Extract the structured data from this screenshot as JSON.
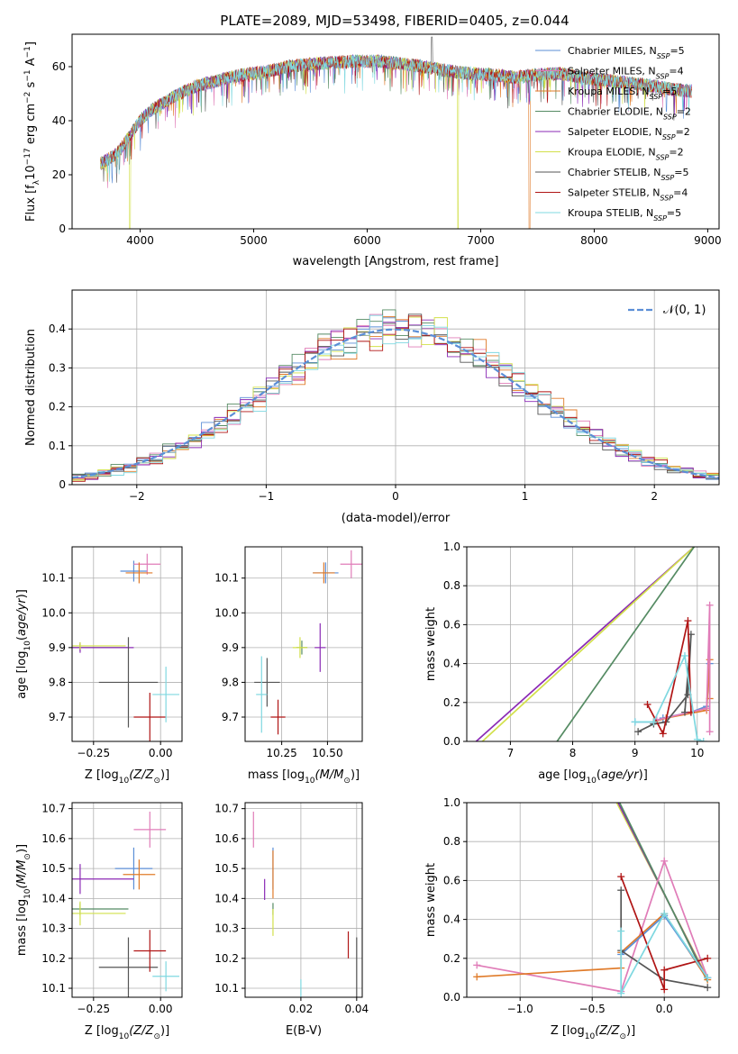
{
  "figure": {
    "title": "PLATE=2089, MJD=53498, FIBERID=0405, z=0.044"
  },
  "models": [
    {
      "name": "Chabrier MILES, N",
      "sub": "SSP",
      "n": "=5",
      "color": "#5b8ed6"
    },
    {
      "name": "Salpeter MILES, N",
      "sub": "SSP",
      "n": "=4",
      "color": "#e07cb8"
    },
    {
      "name": "Kroupa MILES, N",
      "sub": "SSP",
      "n": "=5",
      "color": "#e07b2a"
    },
    {
      "name": "Chabrier ELODIE, N",
      "sub": "SSP",
      "n": "=2",
      "color": "#558b63"
    },
    {
      "name": "Salpeter ELODIE, N",
      "sub": "SSP",
      "n": "=2",
      "color": "#8b2ab5"
    },
    {
      "name": "Kroupa ELODIE, N",
      "sub": "SSP",
      "n": "=2",
      "color": "#d2e04a"
    },
    {
      "name": "Chabrier STELIB, N",
      "sub": "SSP",
      "n": "=5",
      "color": "#555555"
    },
    {
      "name": "Salpeter STELIB, N",
      "sub": "SSP",
      "n": "=4",
      "color": "#b01515"
    },
    {
      "name": "Kroupa STELIB, N",
      "sub": "SSP",
      "n": "=5",
      "color": "#7fd8e0"
    }
  ],
  "chart_data": [
    {
      "id": "spectrum",
      "type": "line",
      "xlabel": "wavelength [Angstrom, rest frame]",
      "ylabel_parts": [
        "Flux [f",
        "λ",
        "10",
        "−17",
        " erg cm",
        "−2",
        " s",
        "−1",
        " A",
        "−1",
        "]"
      ],
      "xlim": [
        3400,
        9100
      ],
      "ylim": [
        0,
        72
      ],
      "xticks": [
        4000,
        5000,
        6000,
        7000,
        8000,
        9000
      ],
      "yticks": [
        0,
        20,
        40,
        60
      ],
      "continuum": [
        [
          3650,
          24
        ],
        [
          3800,
          28
        ],
        [
          3900,
          34
        ],
        [
          4000,
          40
        ],
        [
          4100,
          44
        ],
        [
          4300,
          49
        ],
        [
          4500,
          53
        ],
        [
          4700,
          55
        ],
        [
          4900,
          57
        ],
        [
          5100,
          58
        ],
        [
          5300,
          60
        ],
        [
          5500,
          61
        ],
        [
          5700,
          61.5
        ],
        [
          5900,
          62
        ],
        [
          6100,
          62
        ],
        [
          6300,
          61
        ],
        [
          6500,
          60
        ],
        [
          6700,
          58.5
        ],
        [
          6900,
          57.5
        ],
        [
          7100,
          57
        ],
        [
          7300,
          56
        ],
        [
          7500,
          57
        ],
        [
          7700,
          57.5
        ],
        [
          7900,
          56
        ],
        [
          8100,
          55
        ],
        [
          8300,
          54
        ],
        [
          8500,
          53
        ],
        [
          8700,
          51.5
        ],
        [
          8850,
          51
        ]
      ],
      "dropouts": [
        {
          "model": 5,
          "x": 3910
        },
        {
          "model": 5,
          "x": 6800
        },
        {
          "model": 2,
          "x": 7430
        }
      ],
      "spike": {
        "x": 6570,
        "y": 71
      }
    },
    {
      "id": "residuals",
      "type": "histogram",
      "xlabel": "(data-model)/error",
      "ylabel": "Normed distribution",
      "xlim": [
        -2.5,
        2.5
      ],
      "ylim": [
        0,
        0.5
      ],
      "xticks": [
        -2,
        -1,
        0,
        1,
        2
      ],
      "yticks": [
        0,
        0.1,
        0.2,
        0.3,
        0.4
      ],
      "bin_width": 0.1,
      "gaussian_label": "𝒩(0, 1)",
      "gaussian_color": "#5b8ed6"
    },
    {
      "id": "age-Z",
      "type": "errorbar",
      "xlabel_parts": [
        "Z [log",
        "10",
        "(Z/Z",
        "⊙",
        ")]"
      ],
      "ylabel_parts": [
        "age  [log",
        "10",
        "(",
        "age/yr",
        ")]"
      ],
      "xlim": [
        -0.33,
        0.08
      ],
      "ylim": [
        9.63,
        10.19
      ],
      "xticks": [
        -0.25,
        0.0
      ],
      "xtick_labels": [
        "−0.25",
        "0.00"
      ],
      "yticks": [
        9.7,
        9.8,
        9.9,
        10.0,
        10.1
      ],
      "ytick_labels": [
        "9.7",
        "9.8",
        "9.9",
        "10.0",
        "10.1"
      ],
      "points": [
        {
          "m": 0,
          "x": -0.1,
          "y": 10.12,
          "ex": 0.05,
          "ey": 0.03
        },
        {
          "m": 1,
          "x": -0.05,
          "y": 10.14,
          "ex": 0.05,
          "ey": 0.03
        },
        {
          "m": 2,
          "x": -0.08,
          "y": 10.115,
          "ex": 0.05,
          "ey": 0.03
        },
        {
          "m": 3,
          "x": -0.3,
          "y": 9.9,
          "ex": 0.18,
          "ey": 0.01
        },
        {
          "m": 4,
          "x": -0.3,
          "y": 9.9,
          "ex": 0.2,
          "ey": 0.015
        },
        {
          "m": 5,
          "x": -0.3,
          "y": 9.905,
          "ex": 0.17,
          "ey": 0.01
        },
        {
          "m": 6,
          "x": -0.12,
          "y": 9.8,
          "ex": 0.11,
          "ey": 0.13
        },
        {
          "m": 7,
          "x": -0.04,
          "y": 9.7,
          "ex": 0.06,
          "ey": 0.07
        },
        {
          "m": 8,
          "x": 0.02,
          "y": 9.765,
          "ex": 0.05,
          "ey": 0.08
        }
      ]
    },
    {
      "id": "age-mass",
      "type": "errorbar",
      "xlabel_parts": [
        "mass [log",
        "10",
        "(M/M",
        "⊙",
        ")]"
      ],
      "ylabel_parts": [],
      "xlim": [
        10.05,
        10.69
      ],
      "ylim": [
        9.63,
        10.19
      ],
      "xticks": [
        10.25,
        10.5
      ],
      "xtick_labels": [
        "10.25",
        "10.50"
      ],
      "yticks": [
        9.7,
        9.8,
        9.9,
        10.0,
        10.1
      ],
      "ytick_labels": [
        "9.7",
        "9.8",
        "9.9",
        "10.0",
        "10.1"
      ],
      "points": [
        {
          "m": 0,
          "x": 10.49,
          "y": 10.115,
          "ex": 0.07,
          "ey": 0.03
        },
        {
          "m": 1,
          "x": 10.63,
          "y": 10.14,
          "ex": 0.06,
          "ey": 0.04
        },
        {
          "m": 2,
          "x": 10.48,
          "y": 10.115,
          "ex": 0.06,
          "ey": 0.03
        },
        {
          "m": 3,
          "x": 10.36,
          "y": 9.9,
          "ex": 0.03,
          "ey": 0.02
        },
        {
          "m": 4,
          "x": 10.46,
          "y": 9.9,
          "ex": 0.03,
          "ey": 0.07
        },
        {
          "m": 5,
          "x": 10.35,
          "y": 9.9,
          "ex": 0.04,
          "ey": 0.03
        },
        {
          "m": 6,
          "x": 10.17,
          "y": 9.8,
          "ex": 0.07,
          "ey": 0.07
        },
        {
          "m": 7,
          "x": 10.23,
          "y": 9.7,
          "ex": 0.04,
          "ey": 0.05
        },
        {
          "m": 8,
          "x": 10.14,
          "y": 9.765,
          "ex": 0.03,
          "ey": 0.11
        }
      ]
    },
    {
      "id": "weight-age",
      "type": "line",
      "xlabel_parts": [
        "age  [log",
        "10",
        "(",
        "age/yr",
        ")]"
      ],
      "ylabel": "mass weight",
      "xlim": [
        6.3,
        10.35
      ],
      "ylim": [
        0,
        1
      ],
      "xticks": [
        7,
        8,
        9,
        10
      ],
      "xtick_labels": [
        "7",
        "8",
        "9",
        "10"
      ],
      "yticks": [
        0,
        0.2,
        0.4,
        0.6,
        0.8,
        1.0
      ],
      "ytick_labels": [
        "0.0",
        "0.2",
        "0.4",
        "0.6",
        "0.8",
        "1.0"
      ],
      "series": [
        {
          "m": 4,
          "marker": false,
          "points": [
            [
              6.45,
              0.0
            ],
            [
              9.95,
              1.0
            ]
          ]
        },
        {
          "m": 5,
          "marker": false,
          "points": [
            [
              6.55,
              0.0
            ],
            [
              9.95,
              1.0
            ]
          ]
        },
        {
          "m": 3,
          "marker": false,
          "points": [
            [
              7.75,
              0.0
            ],
            [
              9.95,
              1.0
            ]
          ]
        },
        {
          "m": 0,
          "marker": true,
          "points": [
            [
              9.0,
              0.1
            ],
            [
              9.3,
              0.1
            ],
            [
              9.45,
              0.12
            ],
            [
              9.9,
              0.15
            ],
            [
              10.15,
              0.18
            ],
            [
              10.2,
              0.4
            ]
          ]
        },
        {
          "m": 2,
          "marker": true,
          "points": [
            [
              9.3,
              0.1
            ],
            [
              9.5,
              0.12
            ],
            [
              10.15,
              0.16
            ],
            [
              10.2,
              0.42
            ],
            [
              10.2,
              0.22
            ]
          ]
        },
        {
          "m": 1,
          "marker": true,
          "points": [
            [
              9.35,
              0.11
            ],
            [
              10.15,
              0.17
            ],
            [
              10.2,
              0.7
            ],
            [
              10.2,
              0.05
            ]
          ]
        },
        {
          "m": 6,
          "marker": true,
          "points": [
            [
              9.05,
              0.05
            ],
            [
              9.3,
              0.09
            ],
            [
              9.5,
              0.1
            ],
            [
              9.85,
              0.24
            ],
            [
              9.9,
              0.55
            ],
            [
              9.8,
              0.15
            ]
          ]
        },
        {
          "m": 7,
          "marker": true,
          "points": [
            [
              9.2,
              0.19
            ],
            [
              9.45,
              0.04
            ],
            [
              9.85,
              0.62
            ],
            [
              9.9,
              0.15
            ]
          ]
        },
        {
          "m": 8,
          "marker": true,
          "points": [
            [
              9.0,
              0.1
            ],
            [
              9.3,
              0.1
            ],
            [
              9.8,
              0.44
            ],
            [
              10.0,
              0.01
            ],
            [
              10.1,
              0.0
            ]
          ]
        }
      ]
    },
    {
      "id": "mass-Z",
      "type": "errorbar",
      "xlabel_parts": [
        "Z [log",
        "10",
        "(Z/Z",
        "⊙",
        ")]"
      ],
      "ylabel_parts": [
        "mass [log",
        "10",
        "(M/M",
        "⊙",
        ")]"
      ],
      "xlim": [
        -0.33,
        0.08
      ],
      "ylim": [
        10.07,
        10.72
      ],
      "xticks": [
        -0.25,
        0.0
      ],
      "xtick_labels": [
        "−0.25",
        "0.00"
      ],
      "yticks": [
        10.1,
        10.2,
        10.3,
        10.4,
        10.5,
        10.6,
        10.7
      ],
      "ytick_labels": [
        "10.1",
        "10.2",
        "10.3",
        "10.4",
        "10.5",
        "10.6",
        "10.7"
      ],
      "points": [
        {
          "m": 0,
          "x": -0.1,
          "y": 10.5,
          "ex": 0.07,
          "ey": 0.07
        },
        {
          "m": 1,
          "x": -0.04,
          "y": 10.63,
          "ex": 0.06,
          "ey": 0.06
        },
        {
          "m": 2,
          "x": -0.08,
          "y": 10.48,
          "ex": 0.06,
          "ey": 0.05
        },
        {
          "m": 3,
          "x": -0.3,
          "y": 10.365,
          "ex": 0.18,
          "ey": 0.02
        },
        {
          "m": 4,
          "x": -0.3,
          "y": 10.465,
          "ex": 0.2,
          "ey": 0.05
        },
        {
          "m": 5,
          "x": -0.3,
          "y": 10.35,
          "ex": 0.17,
          "ey": 0.04
        },
        {
          "m": 6,
          "x": -0.12,
          "y": 10.17,
          "ex": 0.11,
          "ey": 0.1
        },
        {
          "m": 7,
          "x": -0.04,
          "y": 10.225,
          "ex": 0.06,
          "ey": 0.07
        },
        {
          "m": 8,
          "x": 0.02,
          "y": 10.14,
          "ex": 0.05,
          "ey": 0.05
        }
      ]
    },
    {
      "id": "mass-EBV",
      "type": "errorbar",
      "xlabel": "E(B-V)",
      "xlim": [
        0.0,
        0.042
      ],
      "ylim": [
        10.07,
        10.72
      ],
      "xticks": [
        0.02,
        0.04
      ],
      "xtick_labels": [
        "0.02",
        "0.04"
      ],
      "yticks": [
        10.1,
        10.2,
        10.3,
        10.4,
        10.5,
        10.6,
        10.7
      ],
      "ytick_labels": [
        "10.1",
        "10.2",
        "10.3",
        "10.4",
        "10.5",
        "10.6",
        "10.7"
      ],
      "points": [
        {
          "m": 0,
          "x": 0.01,
          "y": 10.5,
          "ex": 0,
          "ey": 0.07
        },
        {
          "m": 1,
          "x": 0.003,
          "y": 10.63,
          "ex": 0,
          "ey": 0.06
        },
        {
          "m": 2,
          "x": 0.01,
          "y": 10.48,
          "ex": 0,
          "ey": 0.08
        },
        {
          "m": 3,
          "x": 0.01,
          "y": 10.365,
          "ex": 0,
          "ey": 0.02
        },
        {
          "m": 4,
          "x": 0.007,
          "y": 10.43,
          "ex": 0,
          "ey": 0.035
        },
        {
          "m": 5,
          "x": 0.01,
          "y": 10.32,
          "ex": 0,
          "ey": 0.045
        },
        {
          "m": 6,
          "x": 0.04,
          "y": 10.17,
          "ex": 0,
          "ey": 0.1
        },
        {
          "m": 7,
          "x": 0.037,
          "y": 10.245,
          "ex": 0,
          "ey": 0.045
        },
        {
          "m": 8,
          "x": 0.02,
          "y": 10.1,
          "ex": 0,
          "ey": 0.03
        }
      ]
    },
    {
      "id": "weight-Z",
      "type": "line",
      "xlabel_parts": [
        "Z [log",
        "10",
        "(Z/Z",
        "⊙",
        ")]"
      ],
      "ylabel": "mass weight",
      "xlim": [
        -1.37,
        0.38
      ],
      "ylim": [
        0,
        1
      ],
      "xticks": [
        -1.0,
        -0.5,
        0.0
      ],
      "xtick_labels": [
        "−1.0",
        "−0.5",
        "0.0"
      ],
      "yticks": [
        0,
        0.2,
        0.4,
        0.6,
        0.8,
        1.0
      ],
      "ytick_labels": [
        "0.0",
        "0.2",
        "0.4",
        "0.6",
        "0.8",
        "1.0"
      ],
      "series": [
        {
          "m": 5,
          "marker": false,
          "points": [
            [
              -0.33,
              1.0
            ],
            [
              0.3,
              0.1
            ]
          ]
        },
        {
          "m": 4,
          "marker": false,
          "points": [
            [
              -0.32,
              1.0
            ],
            [
              0.3,
              0.09
            ]
          ]
        },
        {
          "m": 3,
          "marker": false,
          "points": [
            [
              -0.31,
              1.0
            ],
            [
              0.3,
              0.08
            ]
          ]
        },
        {
          "m": 1,
          "marker": true,
          "points": [
            [
              -1.3,
              0.165
            ],
            [
              -0.3,
              0.03
            ],
            [
              0.0,
              0.7
            ],
            [
              0.3,
              0.1
            ]
          ]
        },
        {
          "m": 2,
          "marker": true,
          "points": [
            [
              -1.3,
              0.105
            ],
            [
              -0.3,
              0.15
            ],
            [
              -0.3,
              0.23
            ],
            [
              0.0,
              0.43
            ],
            [
              0.3,
              0.09
            ]
          ]
        },
        {
          "m": 0,
          "marker": true,
          "points": [
            [
              -0.3,
              0.22
            ],
            [
              0.0,
              0.42
            ],
            [
              0.3,
              0.1
            ]
          ]
        },
        {
          "m": 6,
          "marker": true,
          "points": [
            [
              -0.3,
              0.55
            ],
            [
              -0.3,
              0.24
            ],
            [
              0.0,
              0.09
            ],
            [
              0.3,
              0.05
            ]
          ]
        },
        {
          "m": 7,
          "marker": true,
          "points": [
            [
              -0.3,
              0.62
            ],
            [
              0.0,
              0.04
            ],
            [
              0.0,
              0.14
            ],
            [
              0.3,
              0.2
            ]
          ]
        },
        {
          "m": 8,
          "marker": true,
          "points": [
            [
              -0.3,
              0.34
            ],
            [
              -0.3,
              0.02
            ],
            [
              0.0,
              0.43
            ],
            [
              0.3,
              0.1
            ]
          ]
        }
      ]
    }
  ]
}
